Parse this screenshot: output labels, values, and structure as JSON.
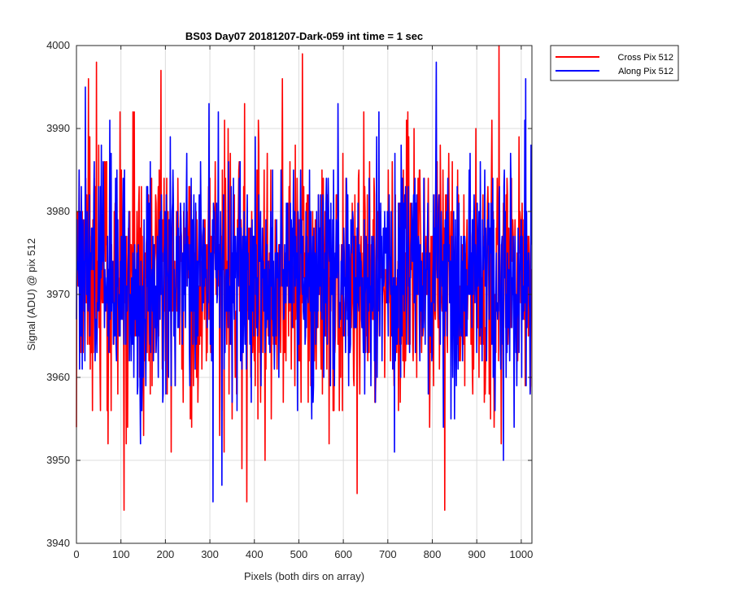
{
  "chart_data": {
    "type": "line",
    "title": "BS03 Day07 20181207-Dark-059 int time = 1 sec",
    "xlabel": "Pixels (both dirs on array)",
    "ylabel": "Signal (ADU) @ pix 512",
    "xlim": [
      0,
      1024
    ],
    "ylim": [
      3940,
      4000
    ],
    "xticks": [
      0,
      100,
      200,
      300,
      400,
      500,
      600,
      700,
      800,
      900,
      1000
    ],
    "yticks": [
      3940,
      3950,
      3960,
      3970,
      3980,
      3990,
      4000
    ],
    "grid": true,
    "legend_position": "outside-top-right",
    "sample_points": 1024,
    "series": [
      {
        "name": "Cross Pix 512",
        "color": "#ff0000",
        "mean": 3972,
        "typical_range": [
          3957,
          3988
        ],
        "notable_points": [
          {
            "x": 0,
            "y": 3954
          },
          {
            "x": 45,
            "y": 3998
          },
          {
            "x": 107,
            "y": 3944
          },
          {
            "x": 190,
            "y": 3997
          },
          {
            "x": 213,
            "y": 3951
          },
          {
            "x": 508,
            "y": 3999
          },
          {
            "x": 631,
            "y": 3946
          },
          {
            "x": 828,
            "y": 3944
          },
          {
            "x": 950,
            "y": 4000
          }
        ]
      },
      {
        "name": "Along Pix 512",
        "color": "#0000ff",
        "mean": 3972,
        "typical_range": [
          3958,
          3986
        ],
        "notable_points": [
          {
            "x": 20,
            "y": 3995
          },
          {
            "x": 307,
            "y": 3945
          },
          {
            "x": 327,
            "y": 3947
          },
          {
            "x": 680,
            "y": 3992
          },
          {
            "x": 960,
            "y": 3950
          },
          {
            "x": 1010,
            "y": 3996
          }
        ]
      }
    ]
  }
}
